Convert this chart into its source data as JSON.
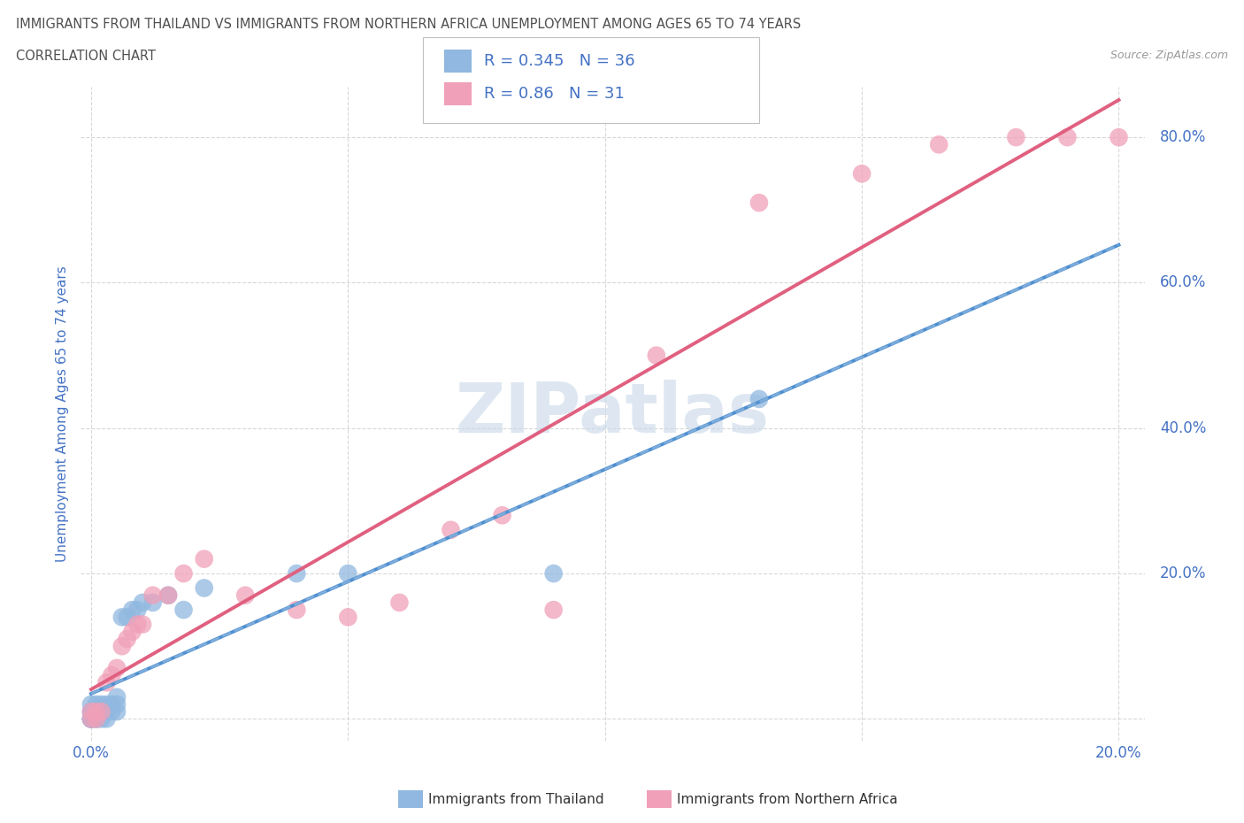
{
  "title_line1": "IMMIGRANTS FROM THAILAND VS IMMIGRANTS FROM NORTHERN AFRICA UNEMPLOYMENT AMONG AGES 65 TO 74 YEARS",
  "title_line2": "CORRELATION CHART",
  "source_text": "Source: ZipAtlas.com",
  "xlabel_legend": "Immigrants from Thailand",
  "xlabel_legend2": "Immigrants from Northern Africa",
  "ylabel": "Unemployment Among Ages 65 to 74 years",
  "xlim": [
    -0.002,
    0.205
  ],
  "ylim": [
    -0.03,
    0.87
  ],
  "xticks": [
    0.0,
    0.05,
    0.1,
    0.15,
    0.2
  ],
  "yticks": [
    0.0,
    0.2,
    0.4,
    0.6,
    0.8
  ],
  "thailand_color": "#90b8e0",
  "thailand_line_color": "#5090d0",
  "northern_africa_color": "#f0a0b8",
  "northern_africa_line_color": "#e06080",
  "thailand_R": 0.345,
  "thailand_N": 36,
  "northern_africa_R": 0.86,
  "northern_africa_N": 31,
  "watermark": "ZIPatlas",
  "watermark_color": "#c8d8e8",
  "thailand_x": [
    0.0,
    0.0,
    0.0,
    0.0,
    0.0,
    0.0,
    0.0,
    0.001,
    0.001,
    0.001,
    0.001,
    0.002,
    0.002,
    0.002,
    0.002,
    0.003,
    0.003,
    0.003,
    0.004,
    0.004,
    0.005,
    0.005,
    0.005,
    0.006,
    0.007,
    0.008,
    0.009,
    0.01,
    0.012,
    0.015,
    0.018,
    0.022,
    0.04,
    0.05,
    0.09,
    0.13
  ],
  "thailand_y": [
    0.0,
    0.0,
    0.0,
    0.0,
    0.01,
    0.01,
    0.02,
    0.0,
    0.0,
    0.01,
    0.02,
    0.0,
    0.01,
    0.01,
    0.02,
    0.0,
    0.01,
    0.02,
    0.01,
    0.02,
    0.01,
    0.02,
    0.03,
    0.14,
    0.14,
    0.15,
    0.15,
    0.16,
    0.16,
    0.17,
    0.15,
    0.18,
    0.2,
    0.2,
    0.2,
    0.44
  ],
  "northern_africa_x": [
    0.0,
    0.0,
    0.001,
    0.001,
    0.002,
    0.003,
    0.004,
    0.005,
    0.006,
    0.007,
    0.008,
    0.009,
    0.01,
    0.012,
    0.015,
    0.018,
    0.022,
    0.03,
    0.04,
    0.05,
    0.06,
    0.07,
    0.08,
    0.09,
    0.11,
    0.13,
    0.15,
    0.165,
    0.18,
    0.19,
    0.2
  ],
  "northern_africa_y": [
    0.0,
    0.01,
    0.0,
    0.01,
    0.01,
    0.05,
    0.06,
    0.07,
    0.1,
    0.11,
    0.12,
    0.13,
    0.13,
    0.17,
    0.17,
    0.2,
    0.22,
    0.17,
    0.15,
    0.14,
    0.16,
    0.26,
    0.28,
    0.15,
    0.5,
    0.71,
    0.75,
    0.79,
    0.8,
    0.8,
    0.8
  ],
  "background_color": "#ffffff",
  "grid_color": "#d8d8d8",
  "title_color": "#505050",
  "tick_label_color": "#4472c4",
  "legend_R_color": "#4472c4"
}
